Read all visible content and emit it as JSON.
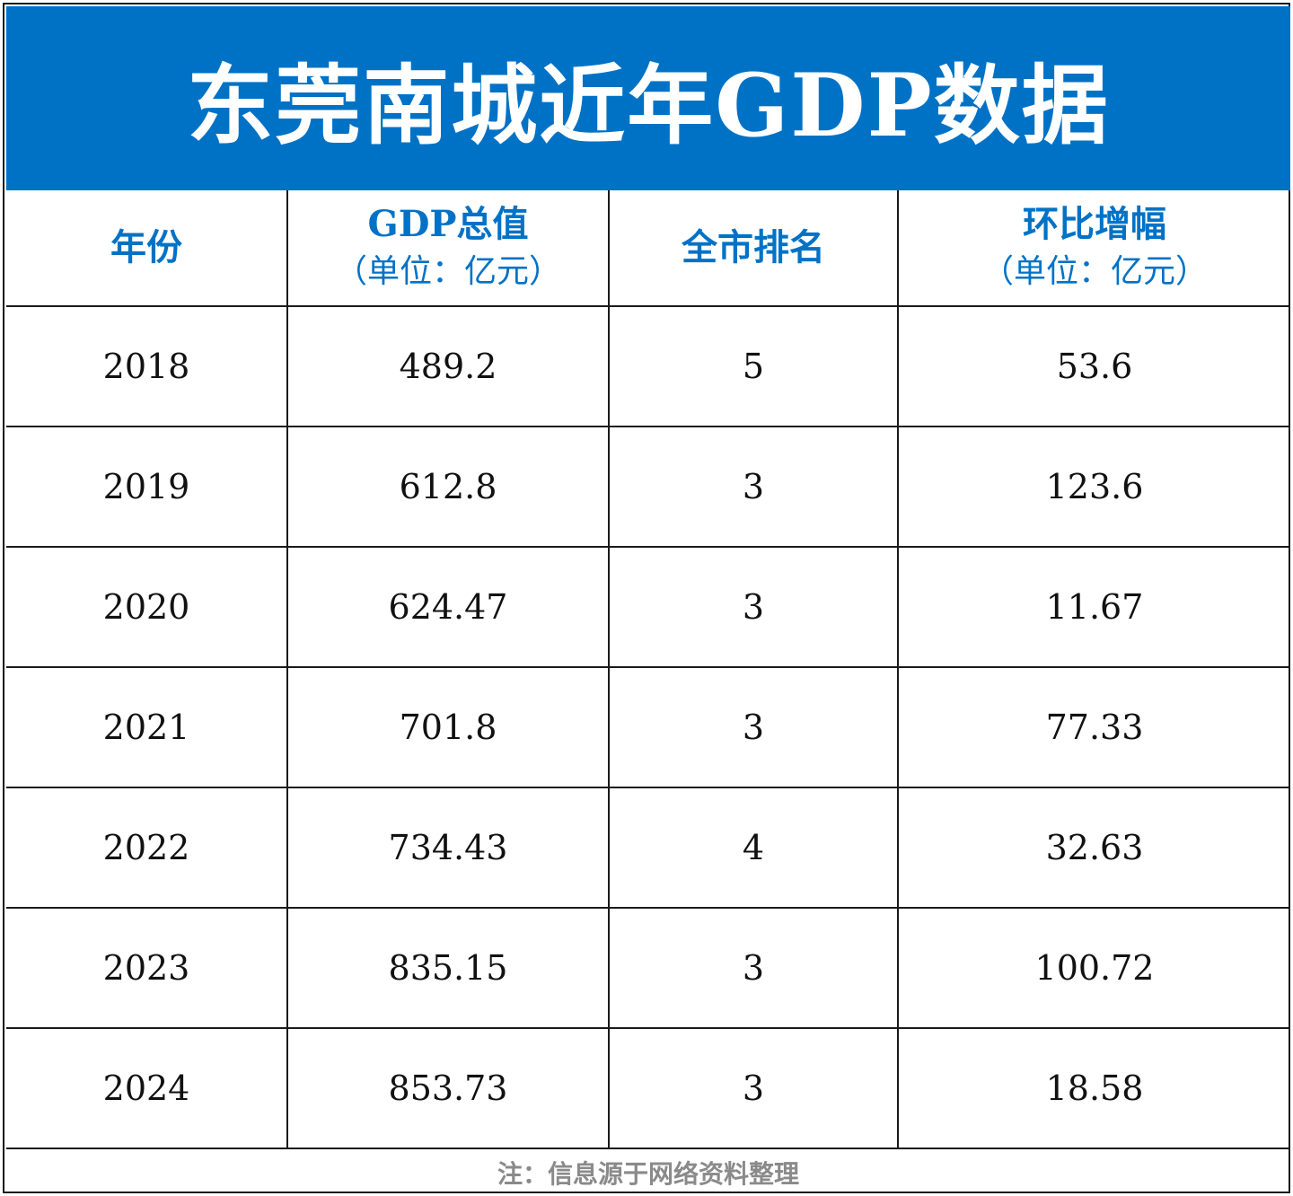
{
  "chart_data": {
    "type": "table",
    "title": "东莞南城近年GDP数据",
    "columns": [
      {
        "label": "年份",
        "unit": ""
      },
      {
        "label": "GDP总值",
        "unit": "（单位：亿元）"
      },
      {
        "label": "全市排名",
        "unit": ""
      },
      {
        "label": "环比增幅",
        "unit": "（单位：亿元）"
      }
    ],
    "rows": [
      [
        "2018",
        "489.2",
        "5",
        "53.6"
      ],
      [
        "2019",
        "612.8",
        "3",
        "123.6"
      ],
      [
        "2020",
        "624.47",
        "3",
        "11.67"
      ],
      [
        "2021",
        "701.8",
        "3",
        "77.33"
      ],
      [
        "2022",
        "734.43",
        "4",
        "32.63"
      ],
      [
        "2023",
        "835.15",
        "3",
        "100.72"
      ],
      [
        "2024",
        "853.73",
        "3",
        "18.58"
      ]
    ],
    "note": "注：信息源于网络资料整理"
  },
  "colors": {
    "title_background": "#0072c6",
    "title_text": "#ffffff",
    "header_text": "#0072c6",
    "body_text": "#111111",
    "note_text": "#8a8a8a",
    "border": "#1a1a1a"
  }
}
